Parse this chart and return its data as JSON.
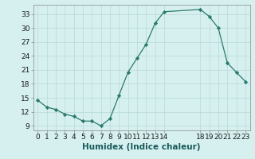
{
  "x": [
    0,
    1,
    2,
    3,
    4,
    5,
    6,
    7,
    8,
    9,
    10,
    11,
    12,
    13,
    14,
    18,
    19,
    20,
    21,
    22,
    23
  ],
  "y": [
    14.5,
    13.0,
    12.5,
    11.5,
    11.0,
    10.0,
    10.0,
    9.0,
    10.5,
    15.5,
    20.5,
    23.5,
    26.5,
    31.0,
    33.5,
    34.0,
    32.5,
    30.0,
    22.5,
    20.5,
    18.5
  ],
  "line_color": "#2a7a6a",
  "marker": "D",
  "marker_size": 2.2,
  "bg_color": "#d6f0f0",
  "grid_color": "#b8d8d8",
  "xlabel": "Humidex (Indice chaleur)",
  "xlim": [
    -0.5,
    23.5
  ],
  "ylim": [
    8,
    35
  ],
  "yticks": [
    9,
    12,
    15,
    18,
    21,
    24,
    27,
    30,
    33
  ],
  "xlabel_fontsize": 7.5,
  "tick_fontsize": 6.5
}
